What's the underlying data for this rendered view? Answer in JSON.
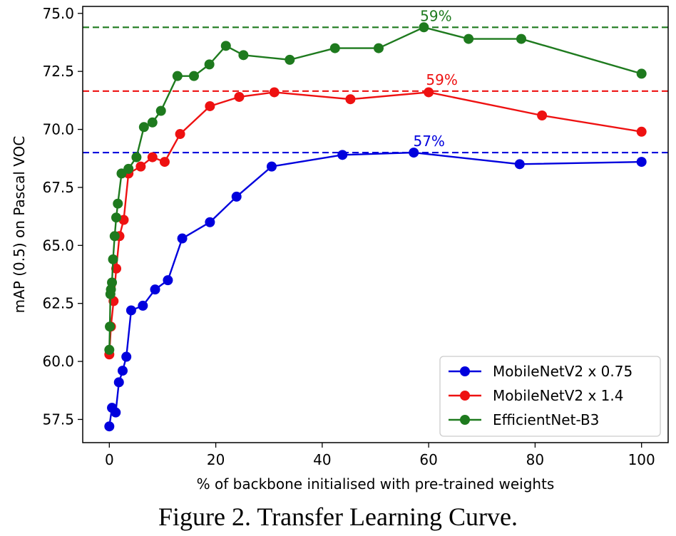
{
  "caption": "Figure 2. Transfer Learning Curve.",
  "chart_data": {
    "type": "line",
    "title": "",
    "xlabel": "% of backbone initialised with pre-trained weights",
    "ylabel": "mAP (0.5) on Pascal VOC",
    "xlim": [
      -5,
      105
    ],
    "ylim": [
      56.5,
      75.3
    ],
    "xticks": [
      0,
      20,
      40,
      60,
      80,
      100
    ],
    "xtick_labels": [
      "0",
      "20",
      "40",
      "60",
      "80",
      "100"
    ],
    "yticks": [
      57.5,
      60.0,
      62.5,
      65.0,
      67.5,
      70.0,
      72.5,
      75.0
    ],
    "ytick_labels": [
      "57.5",
      "60.0",
      "62.5",
      "65.0",
      "67.5",
      "70.0",
      "72.5",
      "75.0"
    ],
    "grid": false,
    "legend_position": "bottom-right",
    "series": [
      {
        "name": "MobileNetV2 x 0.75",
        "color": "#0000dd",
        "x": [
          0,
          0.5,
          1.2,
          1.8,
          2.5,
          3.2,
          4.1,
          6.3,
          8.6,
          11.0,
          13.7,
          18.9,
          23.9,
          30.5,
          43.8,
          57.2,
          77.1,
          100
        ],
        "y": [
          57.2,
          58.0,
          57.8,
          59.1,
          59.6,
          60.2,
          62.2,
          62.4,
          63.1,
          63.5,
          65.3,
          66.0,
          67.1,
          68.4,
          68.9,
          69.0,
          68.5,
          68.6
        ],
        "best_y": 69.0,
        "best_label": "57%",
        "best_label_x": 57.5
      },
      {
        "name": "MobileNetV2 x 1.4",
        "color": "#ee1111",
        "x": [
          0,
          0.3,
          0.8,
          1.3,
          1.9,
          2.7,
          3.6,
          5.9,
          8.1,
          10.4,
          13.3,
          18.9,
          24.4,
          31.0,
          45.3,
          60.0,
          81.3,
          100
        ],
        "y": [
          60.3,
          61.5,
          62.6,
          64.0,
          65.4,
          66.1,
          68.1,
          68.4,
          68.8,
          68.6,
          69.8,
          71.0,
          71.4,
          71.6,
          71.3,
          71.6,
          70.6,
          69.9
        ],
        "best_y": 71.65,
        "best_label": "59%",
        "best_label_x": 59.9
      },
      {
        "name": "EfficientNet-B3",
        "color": "#1e7a1e",
        "x": [
          0,
          0.1,
          0.2,
          0.3,
          0.5,
          0.7,
          1.0,
          1.3,
          1.6,
          2.3,
          3.6,
          5.1,
          6.5,
          8.1,
          9.7,
          12.8,
          15.9,
          18.8,
          21.9,
          25.2,
          33.9,
          42.4,
          50.6,
          59.1,
          67.5,
          77.4,
          100
        ],
        "y": [
          60.5,
          61.5,
          62.9,
          63.1,
          63.4,
          64.4,
          65.4,
          66.2,
          66.8,
          68.1,
          68.3,
          68.8,
          70.1,
          70.3,
          70.8,
          72.3,
          72.3,
          72.8,
          73.6,
          73.2,
          73.0,
          73.5,
          73.5,
          74.4,
          73.9,
          73.9,
          72.4
        ],
        "best_y": 74.4,
        "best_label": "59%",
        "best_label_x": 58.8
      }
    ]
  }
}
